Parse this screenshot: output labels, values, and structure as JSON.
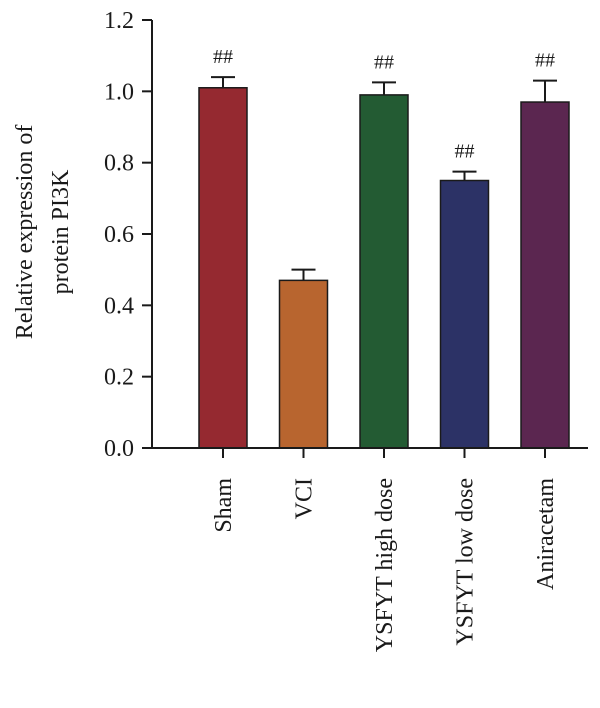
{
  "chart_data": {
    "type": "bar",
    "title": "",
    "xlabel": "",
    "ylabel_lines": [
      "Relative expression of",
      "protein PI3K"
    ],
    "ylim": [
      0,
      1.2
    ],
    "yticks": [
      "0.0",
      "0.2",
      "0.4",
      "0.6",
      "0.8",
      "1.0",
      "1.2"
    ],
    "grid": false,
    "categories": [
      "Sham",
      "VCI",
      "YSFYT high dose",
      "YSFYT low dose",
      "Aniracetam"
    ],
    "values": [
      1.01,
      0.47,
      0.99,
      0.75,
      0.97
    ],
    "errors": [
      0.03,
      0.03,
      0.035,
      0.025,
      0.06
    ],
    "annotations": [
      "##",
      "",
      "##",
      "##",
      "##"
    ],
    "colors": [
      "#952930",
      "#b8652f",
      "#235b33",
      "#2c3266",
      "#5b2650"
    ]
  }
}
